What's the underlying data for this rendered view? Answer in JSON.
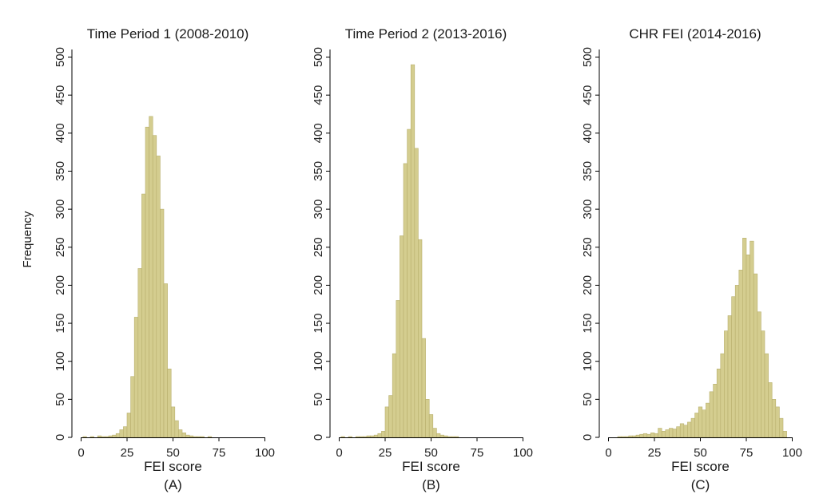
{
  "figure": {
    "ylabel": "Frequency"
  },
  "chart_data": [
    {
      "type": "bar",
      "title": "Time Period 1 (2008-2010)",
      "xlabel": "FEI score",
      "panel_label": "(A)",
      "xlim": [
        -5,
        105
      ],
      "ylim": [
        0,
        510
      ],
      "xticks": [
        0,
        25,
        50,
        75,
        100
      ],
      "yticks": [
        0,
        50,
        100,
        150,
        200,
        250,
        300,
        350,
        400,
        450,
        500
      ],
      "bin_width": 2,
      "bar_color": "#d4cd8f",
      "bar_edge_color": "#b8b06e",
      "x": [
        2,
        4,
        6,
        8,
        10,
        12,
        14,
        16,
        18,
        20,
        22,
        24,
        26,
        28,
        30,
        32,
        34,
        36,
        38,
        40,
        42,
        44,
        46,
        48,
        50,
        52,
        54,
        56,
        58,
        60,
        62,
        64,
        66,
        68,
        70
      ],
      "values": [
        1,
        0,
        1,
        0,
        2,
        1,
        1,
        2,
        3,
        5,
        10,
        14,
        32,
        80,
        158,
        222,
        320,
        408,
        422,
        397,
        370,
        300,
        202,
        90,
        40,
        22,
        10,
        6,
        3,
        2,
        1,
        1,
        1,
        0,
        1
      ],
      "grid": false
    },
    {
      "type": "bar",
      "title": "Time Period 2 (2013-2016)",
      "xlabel": "FEI score",
      "panel_label": "(B)",
      "xlim": [
        -5,
        105
      ],
      "ylim": [
        0,
        510
      ],
      "xticks": [
        0,
        25,
        50,
        75,
        100
      ],
      "yticks": [
        0,
        50,
        100,
        150,
        200,
        250,
        300,
        350,
        400,
        450,
        500
      ],
      "bin_width": 2,
      "bar_color": "#d4cd8f",
      "bar_edge_color": "#b8b06e",
      "x": [
        2,
        4,
        6,
        8,
        10,
        12,
        14,
        16,
        18,
        20,
        22,
        24,
        26,
        28,
        30,
        32,
        34,
        36,
        38,
        40,
        42,
        44,
        46,
        48,
        50,
        52,
        54,
        56,
        58,
        60,
        62,
        64
      ],
      "values": [
        1,
        0,
        1,
        0,
        1,
        1,
        1,
        2,
        2,
        3,
        5,
        8,
        40,
        55,
        110,
        180,
        265,
        360,
        405,
        490,
        380,
        260,
        130,
        50,
        30,
        12,
        5,
        3,
        2,
        1,
        1,
        1
      ],
      "grid": false
    },
    {
      "type": "bar",
      "title": "CHR FEI (2014-2016)",
      "xlabel": "FEI score",
      "panel_label": "(C)",
      "xlim": [
        -5,
        105
      ],
      "ylim": [
        0,
        510
      ],
      "xticks": [
        0,
        25,
        50,
        75,
        100
      ],
      "yticks": [
        0,
        50,
        100,
        150,
        200,
        250,
        300,
        350,
        400,
        450,
        500
      ],
      "bin_width": 2,
      "bar_color": "#d4cd8f",
      "bar_edge_color": "#b8b06e",
      "x": [
        6,
        8,
        10,
        12,
        14,
        16,
        18,
        20,
        22,
        24,
        26,
        28,
        30,
        32,
        34,
        36,
        38,
        40,
        42,
        44,
        46,
        48,
        50,
        52,
        54,
        56,
        58,
        60,
        62,
        64,
        66,
        68,
        70,
        72,
        74,
        76,
        78,
        80,
        82,
        84,
        86,
        88,
        90,
        92,
        94,
        96
      ],
      "values": [
        1,
        1,
        1,
        2,
        2,
        3,
        4,
        5,
        4,
        6,
        5,
        12,
        8,
        10,
        12,
        11,
        14,
        18,
        16,
        20,
        25,
        32,
        40,
        36,
        45,
        60,
        70,
        90,
        110,
        140,
        160,
        185,
        200,
        220,
        262,
        240,
        258,
        215,
        165,
        140,
        110,
        72,
        50,
        40,
        25,
        8
      ],
      "grid": false
    }
  ]
}
